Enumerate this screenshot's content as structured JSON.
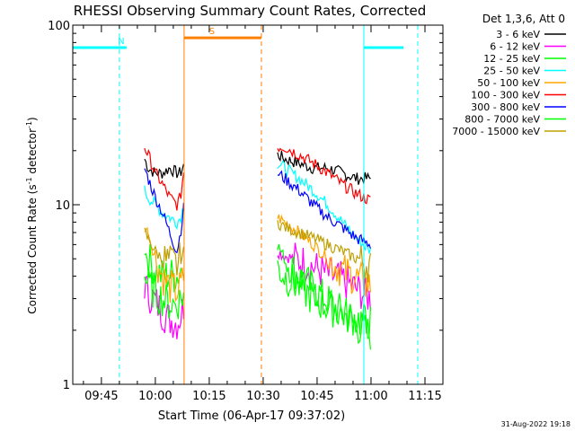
{
  "chart_data": {
    "type": "line",
    "title": "RHESSI Observing Summary Count Rates, Corrected",
    "xlabel": "Start Time (06-Apr-17 09:37:02)",
    "ylabel_parts": [
      "Corrected Count Rate (s",
      "-1",
      " detector",
      "-1",
      ")"
    ],
    "y_scale": "log",
    "ylim": [
      1,
      100
    ],
    "y_ticks": [
      1,
      10,
      100
    ],
    "y_tick_labels": [
      "1",
      "10",
      "100"
    ],
    "x_ticks": [
      "09:45",
      "10:00",
      "10:15",
      "10:30",
      "10:45",
      "11:00",
      "11:15"
    ],
    "xlim": [
      "09:37:02",
      "11:20:00"
    ],
    "legend_title": "Det 1,3,6, Att 0",
    "legend_placement": "right",
    "footer": "31-Aug-2022 19:18",
    "series": [
      {
        "name": "3 - 6 keV",
        "color": "#000000",
        "segments": [
          {
            "x": [
              "09:57",
              "09:58",
              "10:00",
              "10:02",
              "10:04",
              "10:06",
              "10:07",
              "10:08"
            ],
            "values": [
              18,
              16,
              15,
              15,
              16,
              15,
              15,
              17
            ]
          },
          {
            "x": [
              "10:34",
              "10:36",
              "10:40",
              "10:44",
              "10:48",
              "10:52",
              "10:56",
              "11:00"
            ],
            "values": [
              19,
              18,
              17,
              16,
              16,
              15,
              14,
              14
            ]
          }
        ]
      },
      {
        "name": "6 - 12 keV",
        "color": "#ff00ff",
        "segments": [
          {
            "x": [
              "09:57",
              "09:58",
              "10:00",
              "10:02",
              "10:04",
              "10:06",
              "10:07",
              "10:08"
            ],
            "values": [
              3.6,
              3.2,
              2.9,
              2.5,
              2.3,
              2.2,
              2.4,
              2.8
            ]
          },
          {
            "x": [
              "10:34",
              "10:36",
              "10:40",
              "10:44",
              "10:48",
              "10:52",
              "10:56",
              "11:00"
            ],
            "values": [
              5.5,
              5.2,
              4.9,
              4.5,
              4.1,
              3.8,
              3.4,
              3.0
            ]
          }
        ]
      },
      {
        "name": "12 - 25 keV",
        "color": "#00ff00",
        "segments": [
          {
            "x": [
              "09:57",
              "09:58",
              "10:00",
              "10:02",
              "10:04",
              "10:06",
              "10:07",
              "10:08"
            ],
            "values": [
              5.5,
              5.0,
              4.3,
              4.0,
              4.1,
              4.0,
              4.3,
              5.0
            ]
          },
          {
            "x": [
              "10:34",
              "10:36",
              "10:40",
              "10:44",
              "10:48",
              "10:52",
              "10:56",
              "11:00"
            ],
            "values": [
              6.0,
              5.0,
              4.0,
              3.4,
              2.9,
              2.5,
              2.1,
              1.9
            ]
          }
        ]
      },
      {
        "name": "25 - 50 keV",
        "color": "#00ffff",
        "segments": [
          {
            "x": [
              "09:57",
              "09:58",
              "10:00",
              "10:02",
              "10:04",
              "10:06",
              "10:07",
              "10:08"
            ],
            "values": [
              12,
              11,
              10,
              9,
              8.5,
              8,
              8.5,
              10
            ]
          },
          {
            "x": [
              "10:34",
              "10:36",
              "10:40",
              "10:44",
              "10:48",
              "10:52",
              "10:56",
              "11:00"
            ],
            "values": [
              17,
              16,
              14,
              12,
              10,
              8,
              6.5,
              5.5
            ]
          }
        ]
      },
      {
        "name": "50 - 100 keV",
        "color": "#ffa500",
        "segments": [
          {
            "x": [
              "09:57",
              "09:58",
              "10:00",
              "10:02",
              "10:04",
              "10:06",
              "10:07",
              "10:08"
            ],
            "values": [
              7.5,
              7.0,
              5.0,
              4.0,
              3.5,
              3.3,
              3.5,
              4.0
            ]
          },
          {
            "x": [
              "10:34",
              "10:36",
              "10:40",
              "10:44",
              "10:48",
              "10:52",
              "10:56",
              "11:00"
            ],
            "values": [
              8.5,
              8.0,
              7.0,
              6.0,
              5.0,
              4.3,
              3.9,
              3.5
            ]
          }
        ]
      },
      {
        "name": "100 - 300 keV",
        "color": "#ff0000",
        "segments": [
          {
            "x": [
              "09:57",
              "09:58",
              "10:00",
              "10:02",
              "10:04",
              "10:06",
              "10:07",
              "10:08"
            ],
            "values": [
              21,
              19,
              15,
              13,
              11,
              10,
              11,
              16
            ]
          },
          {
            "x": [
              "10:34",
              "10:36",
              "10:40",
              "10:44",
              "10:48",
              "10:52",
              "10:56",
              "11:00"
            ],
            "values": [
              21,
              21,
              19,
              17,
              15,
              13,
              11.5,
              10.5
            ]
          }
        ]
      },
      {
        "name": "300 - 800 keV",
        "color": "#0000ff",
        "segments": [
          {
            "x": [
              "09:57",
              "09:58",
              "10:00",
              "10:02",
              "10:04",
              "10:06",
              "10:07",
              "10:08"
            ],
            "values": [
              16,
              14,
              11,
              9,
              7,
              5.5,
              7,
              10
            ]
          },
          {
            "x": [
              "10:34",
              "10:36",
              "10:40",
              "10:44",
              "10:48",
              "10:52",
              "10:56",
              "11:00"
            ],
            "values": [
              15,
              14,
              12,
              10,
              8.5,
              7.5,
              6.5,
              6.0
            ]
          }
        ]
      },
      {
        "name": "800 - 7000 keV",
        "color": "#00ff00",
        "segments": [
          {
            "x": [
              "09:57",
              "09:58",
              "10:00",
              "10:02",
              "10:04",
              "10:06",
              "10:07",
              "10:08"
            ],
            "values": [
              4.0,
              3.6,
              3.2,
              3.0,
              2.8,
              2.8,
              3.0,
              3.2
            ]
          },
          {
            "x": [
              "10:34",
              "10:36",
              "10:40",
              "10:44",
              "10:48",
              "10:52",
              "10:56",
              "11:00"
            ],
            "values": [
              4.5,
              4.0,
              3.5,
              3.0,
              2.7,
              2.5,
              2.3,
              2.2
            ]
          }
        ]
      },
      {
        "name": "7000 - 15000 keV",
        "color": "#bf9f00",
        "segments": [
          {
            "x": [
              "09:57",
              "09:58",
              "10:00",
              "10:02",
              "10:04",
              "10:06",
              "10:07",
              "10:08"
            ],
            "values": [
              7,
              6.5,
              5.5,
              5,
              4.8,
              4.6,
              5,
              5.5
            ]
          },
          {
            "x": [
              "10:34",
              "10:36",
              "10:40",
              "10:44",
              "10:48",
              "10:52",
              "10:56",
              "11:00"
            ],
            "values": [
              8,
              7.5,
              7,
              6.5,
              6,
              5.5,
              5,
              4.6
            ]
          }
        ]
      }
    ],
    "flag_bars": [
      {
        "label": "",
        "color": "#00ffff",
        "level": 75,
        "from": "09:37:02",
        "to": "09:49"
      },
      {
        "label": "N",
        "color": "#00ffff",
        "level": 75,
        "from": "09:49",
        "to": "09:52"
      },
      {
        "label": "S",
        "color": "#ff8000",
        "level": 85,
        "from": "10:08",
        "to": "10:29:30"
      },
      {
        "label": "",
        "color": "#00ffff",
        "level": 75,
        "from": "10:58",
        "to": "11:09"
      }
    ],
    "vertical_lines": [
      {
        "x": "09:37:02",
        "color": "#00ffff",
        "style": "solid"
      },
      {
        "x": "09:50",
        "color": "#00ffff",
        "style": "dashed"
      },
      {
        "x": "10:08",
        "color": "#ff8000",
        "style": "solid"
      },
      {
        "x": "10:29:30",
        "color": "#ff8000",
        "style": "dashed"
      },
      {
        "x": "10:58",
        "color": "#00ffff",
        "style": "solid"
      },
      {
        "x": "11:13",
        "color": "#00ffff",
        "style": "dashed"
      }
    ]
  }
}
